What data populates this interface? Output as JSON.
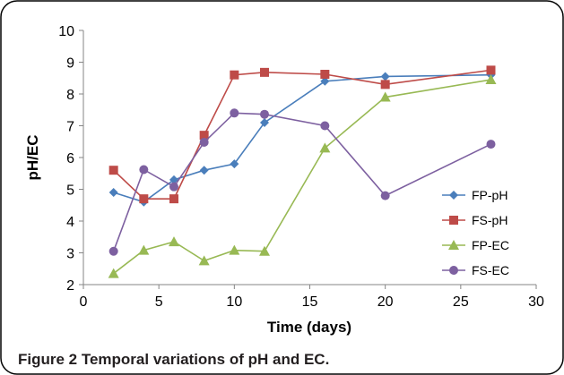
{
  "caption": "Figure 2 Temporal variations of pH and EC.",
  "chart_data": {
    "type": "line",
    "title": "",
    "xlabel": "Time (days)",
    "ylabel": "pH/EC",
    "xlim": [
      0,
      30
    ],
    "ylim": [
      2,
      10
    ],
    "x_ticks": [
      "0",
      "5",
      "10",
      "15",
      "20",
      "25",
      "30"
    ],
    "y_ticks": [
      "2",
      "3",
      "4",
      "5",
      "6",
      "7",
      "8",
      "9",
      "10"
    ],
    "grid": false,
    "legend_position": "right",
    "series": [
      {
        "name": "FP-pH",
        "color": "#4a7ebb",
        "marker": "diamond",
        "points": [
          [
            2,
            4.9
          ],
          [
            4,
            4.6
          ],
          [
            6,
            5.3
          ],
          [
            8,
            5.6
          ],
          [
            10,
            5.8
          ],
          [
            12,
            7.1
          ],
          [
            16,
            8.4
          ],
          [
            20,
            8.55
          ],
          [
            27,
            8.6
          ]
        ]
      },
      {
        "name": "FS-pH",
        "color": "#be4b48",
        "marker": "square",
        "points": [
          [
            2,
            5.6
          ],
          [
            4,
            4.7
          ],
          [
            6,
            4.7
          ],
          [
            8,
            6.7
          ],
          [
            10,
            8.6
          ],
          [
            12,
            8.68
          ],
          [
            16,
            8.62
          ],
          [
            20,
            8.3
          ],
          [
            27,
            8.75
          ]
        ]
      },
      {
        "name": "FP-EC",
        "color": "#98b954",
        "marker": "triangle",
        "points": [
          [
            2,
            2.35
          ],
          [
            4,
            3.08
          ],
          [
            6,
            3.35
          ],
          [
            8,
            2.75
          ],
          [
            10,
            3.08
          ],
          [
            12,
            3.05
          ],
          [
            16,
            6.3
          ],
          [
            20,
            7.9
          ],
          [
            27,
            8.45
          ]
        ]
      },
      {
        "name": "FS-EC",
        "color": "#7d60a0",
        "marker": "circle",
        "points": [
          [
            2,
            3.05
          ],
          [
            4,
            5.62
          ],
          [
            6,
            5.08
          ],
          [
            8,
            6.48
          ],
          [
            10,
            7.4
          ],
          [
            12,
            7.36
          ],
          [
            16,
            7.0
          ],
          [
            20,
            4.8
          ],
          [
            27,
            6.42
          ]
        ]
      }
    ]
  }
}
